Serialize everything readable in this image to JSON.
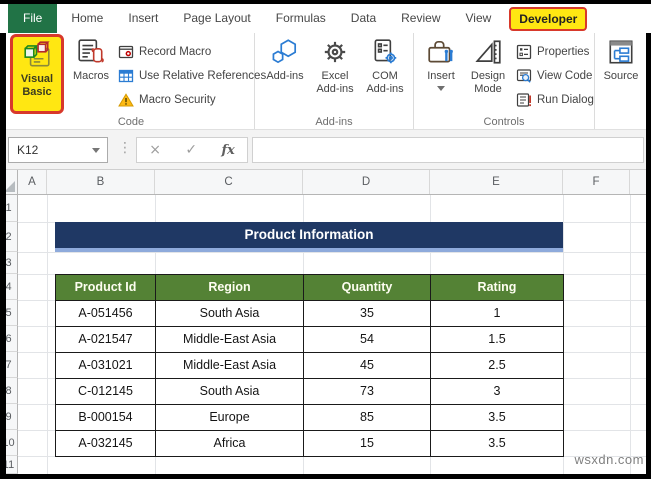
{
  "window": {
    "tabs": [
      {
        "label": "File"
      },
      {
        "label": "Home"
      },
      {
        "label": "Insert"
      },
      {
        "label": "Page Layout"
      },
      {
        "label": "Formulas"
      },
      {
        "label": "Data"
      },
      {
        "label": "Review"
      },
      {
        "label": "View"
      },
      {
        "label": "Developer"
      }
    ]
  },
  "ribbon": {
    "code_group": {
      "label": "Code",
      "visual_basic": "Visual Basic",
      "macros": "Macros",
      "record_macro": "Record Macro",
      "use_relative_references": "Use Relative References",
      "macro_security": "Macro Security"
    },
    "addins_group": {
      "label": "Add-ins",
      "addins": "Add-ins",
      "excel_addins": "Excel Add-ins",
      "com_addins": "COM Add-ins"
    },
    "controls_group": {
      "label": "Controls",
      "insert": "Insert",
      "design_mode": "Design Mode",
      "properties": "Properties",
      "view_code": "View Code",
      "run_dialog": "Run Dialog"
    },
    "xml_group": {
      "source": "Source"
    }
  },
  "formula_bar": {
    "name_box": "K12",
    "cancel": "×",
    "enter": "✓",
    "function": "fx"
  },
  "sheet": {
    "column_headers": [
      "A",
      "B",
      "C",
      "D",
      "E",
      "F"
    ],
    "row_headers": [
      "1",
      "2",
      "3",
      "4",
      "5",
      "6",
      "7",
      "8",
      "9",
      "10",
      "11"
    ],
    "banner_title": "Product Information",
    "table": {
      "headers": [
        "Product Id",
        "Region",
        "Quantity",
        "Rating"
      ],
      "rows": [
        [
          "A-051456",
          "South Asia",
          "35",
          "1"
        ],
        [
          "A-021547",
          "Middle-East Asia",
          "54",
          "1.5"
        ],
        [
          "A-031021",
          "Middle-East Asia",
          "45",
          "2.5"
        ],
        [
          "C-012145",
          "South Asia",
          "73",
          "3"
        ],
        [
          "B-000154",
          "Europe",
          "85",
          "3.5"
        ],
        [
          "A-032145",
          "Africa",
          "15",
          "3.5"
        ]
      ]
    }
  },
  "watermark": "wsxdn.com",
  "colors": {
    "file_tab_green": "#217346",
    "highlight_yellow": "#FFE712",
    "highlight_red": "#D8392B",
    "banner_navy": "#1F3864",
    "banner_accent": "#8EAADB",
    "table_header_green": "#548235"
  }
}
